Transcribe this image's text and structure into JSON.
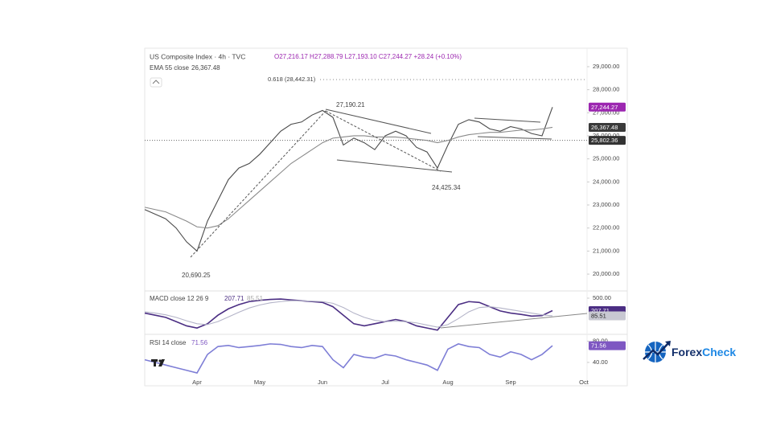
{
  "chart_data": [
    {
      "type": "line",
      "title": "US Composite Index · 4h · TVC",
      "ohlc": "O27,216.17 H27,288.79 L27,193.10 C27,244.27 +28.24 (+0.10%)",
      "categories": [
        null,
        null,
        null,
        null,
        null,
        "Apr",
        null,
        null,
        null,
        null,
        null,
        "May",
        null,
        null,
        null,
        null,
        null,
        "Jun",
        null,
        null,
        null,
        null,
        null,
        "Jul",
        null,
        null,
        null,
        null,
        null,
        "Aug",
        null,
        null,
        null,
        null,
        null,
        "Sep",
        null,
        null,
        null,
        null,
        null,
        null,
        "Oct"
      ],
      "series": [
        {
          "name": "US Composite Index · 4h · TVC",
          "color": "#4a4a4a",
          "label_color": "#9c27b0",
          "last_label": "27,244.27",
          "values": [
            22800,
            22600,
            22400,
            22000,
            21400,
            21000,
            22300,
            23200,
            24100,
            24600,
            24800,
            25200,
            25700,
            26200,
            26500,
            26600,
            26900,
            27100,
            26800,
            25600,
            25900,
            25700,
            25400,
            26000,
            26200,
            26000,
            25500,
            25300,
            24600,
            25600,
            26500,
            26700,
            26600,
            26300,
            26200,
            26400,
            26300,
            26100,
            26000,
            27244.27,
            null,
            null,
            null
          ]
        },
        {
          "name": "EMA 55 close",
          "color": "#8a8a8a",
          "label_color": "#3a3a3a",
          "last_label": "26,367.48",
          "values": [
            22900,
            22800,
            22700,
            22500,
            22300,
            22050,
            22000,
            22100,
            22400,
            22800,
            23200,
            23600,
            24000,
            24400,
            24800,
            25100,
            25400,
            25700,
            25900,
            25950,
            26000,
            26000,
            25950,
            25950,
            25950,
            25900,
            25850,
            25800,
            25700,
            25800,
            25950,
            26050,
            26100,
            26150,
            26150,
            26200,
            26250,
            26250,
            26300,
            26367.48,
            null,
            null,
            null
          ]
        }
      ],
      "ylim": [
        19270,
        29800
      ],
      "yticks": [
        {
          "value": 20000,
          "label": "20,000.00"
        },
        {
          "value": 21000,
          "label": "21,000.00"
        },
        {
          "value": 22000,
          "label": "22,000.00"
        },
        {
          "value": 23000,
          "label": "23,000.00"
        },
        {
          "value": 24000,
          "label": "24,000.00"
        },
        {
          "value": 25000,
          "label": "25,000.00"
        },
        {
          "value": 26000,
          "label": "26,000.00"
        },
        {
          "value": 27000,
          "label": "27,000.00"
        },
        {
          "value": 28000,
          "label": "28,000.00"
        },
        {
          "value": 29000,
          "label": "29,000.00"
        }
      ],
      "fib": {
        "value": 28442.31,
        "label": "0.618 (28,442.31)"
      },
      "level": {
        "value": 25802.36,
        "label": "25,802.36"
      },
      "annotations": [
        "27,190.21",
        "24,425.34",
        "20,690.25"
      ]
    },
    {
      "type": "line",
      "series": [
        {
          "name": "MACD close 12 26 9",
          "color": "#4b2e83",
          "label_color": "#4b2e83",
          "last_label": "207.71",
          "values": [
            150,
            100,
            50,
            -50,
            -150,
            -200,
            -100,
            100,
            250,
            350,
            420,
            450,
            470,
            480,
            460,
            440,
            420,
            400,
            300,
            100,
            -100,
            -150,
            -100,
            -50,
            0,
            -50,
            -150,
            -200,
            -250,
            50,
            350,
            420,
            400,
            300,
            200,
            150,
            120,
            80,
            90,
            207.71,
            null,
            null,
            null
          ]
        },
        {
          "color": "#b4b4c8",
          "label_color": "#c8c8d2",
          "last_label": "85.51",
          "values": [
            180,
            150,
            110,
            50,
            -30,
            -100,
            -120,
            -50,
            60,
            170,
            270,
            340,
            390,
            420,
            440,
            440,
            430,
            420,
            380,
            280,
            150,
            50,
            -20,
            -50,
            -40,
            -50,
            -80,
            -130,
            -180,
            -120,
            20,
            180,
            280,
            300,
            270,
            230,
            190,
            150,
            110,
            85.51,
            null,
            null,
            null
          ]
        }
      ],
      "ylim": [
        -330,
        670
      ],
      "yticks": [
        {
          "value": 500,
          "label": "500.00"
        }
      ]
    },
    {
      "type": "line",
      "series": [
        {
          "name": "RSI 14 close",
          "color": "#7e7ed6",
          "label_color": "#7e57c2",
          "last_label": "71.56",
          "values": [
            45,
            40,
            35,
            30,
            25,
            20,
            55,
            70,
            72,
            68,
            70,
            72,
            75,
            74,
            70,
            68,
            72,
            70,
            45,
            30,
            55,
            50,
            48,
            55,
            52,
            45,
            40,
            35,
            25,
            65,
            75,
            70,
            68,
            55,
            50,
            60,
            55,
            45,
            55,
            71.56,
            null,
            null,
            null
          ]
        }
      ],
      "ylim": [
        14,
        90
      ],
      "yticks": [
        {
          "value": 40,
          "label": "40.00"
        },
        {
          "value": 80,
          "label": "80.00"
        }
      ]
    }
  ],
  "logo": {
    "part1": "Forex",
    "part2": "Check"
  }
}
